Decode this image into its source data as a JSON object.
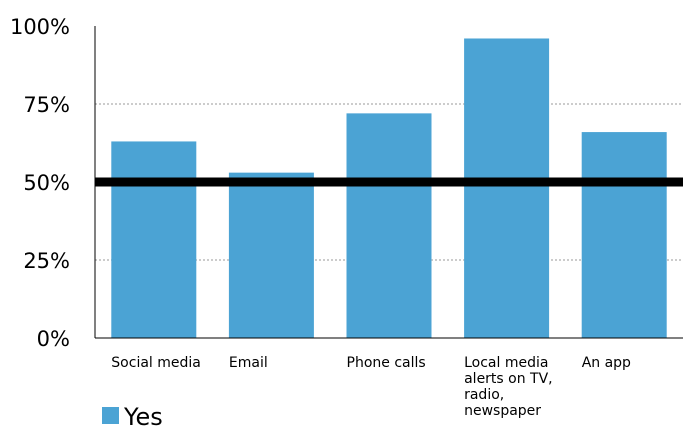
{
  "chart_data": {
    "type": "bar",
    "categories": [
      [
        "Social media"
      ],
      [
        "Email"
      ],
      [
        "Phone calls"
      ],
      [
        "Local media",
        "alerts on TV,",
        "radio,",
        "newspaper"
      ],
      [
        "An app"
      ]
    ],
    "series": [
      {
        "name": "Yes",
        "values": [
          63,
          53,
          72,
          96,
          66
        ],
        "color": "#4ba3d4"
      }
    ],
    "reference_line": {
      "value": 50,
      "color": "#000000"
    },
    "y_ticks": [
      "0%",
      "25%",
      "50%",
      "75%",
      "100%"
    ],
    "y_tick_values": [
      0,
      25,
      50,
      75,
      100
    ],
    "ylim": [
      0,
      100
    ],
    "grid": "dotted horizontal",
    "legend_position": "bottom-left"
  }
}
